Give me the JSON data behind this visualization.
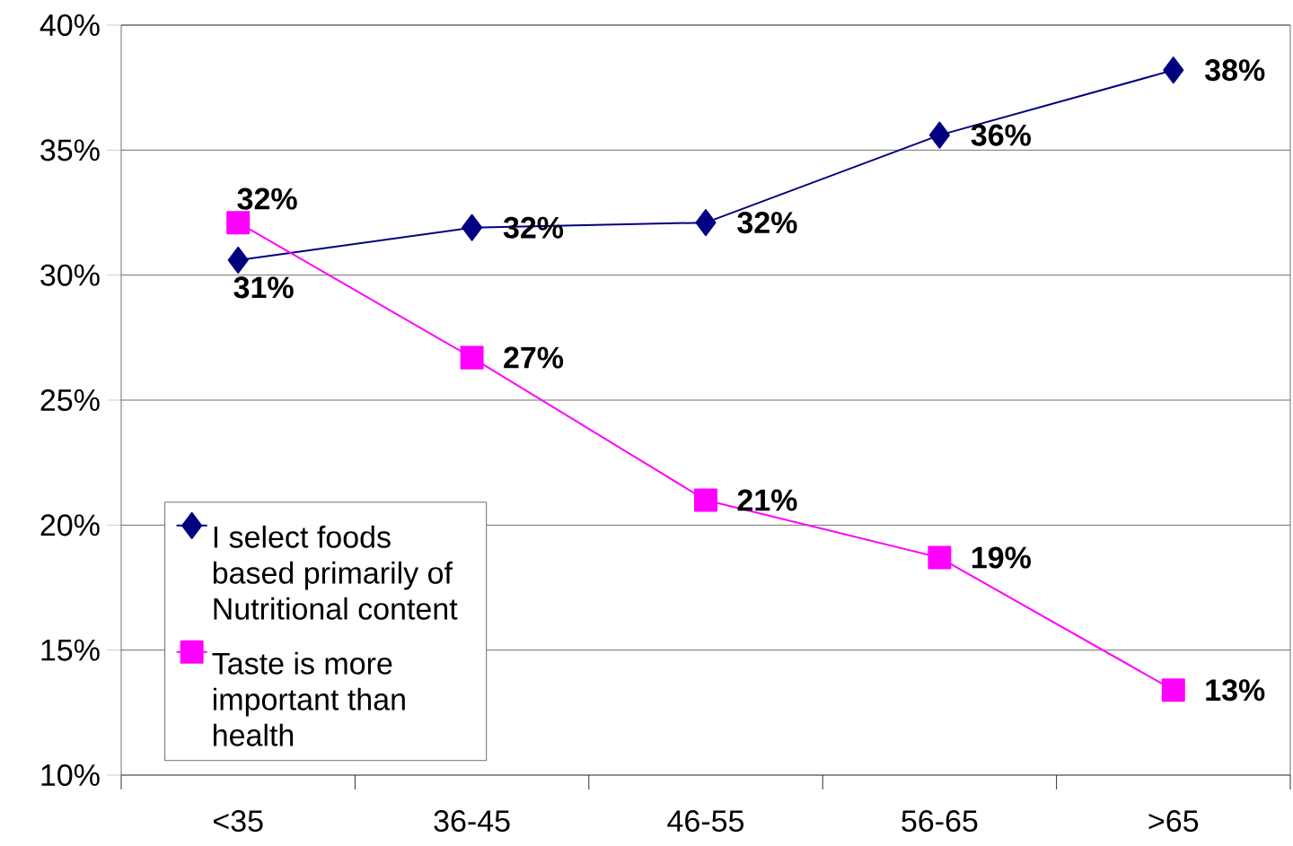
{
  "chart_data": {
    "type": "line",
    "categories": [
      "<35",
      "36-45",
      "46-55",
      "56-65",
      ">65"
    ],
    "series": [
      {
        "name": "I select foods based primarily of Nutritional content",
        "color": "#000080",
        "marker": "diamond",
        "values": [
          30.6,
          31.9,
          32.1,
          35.6,
          38.2
        ],
        "value_labels": [
          "31%",
          "32%",
          "32%",
          "36%",
          "38%"
        ]
      },
      {
        "name": "Taste is more important than health",
        "color": "#ff00ff",
        "marker": "square",
        "values": [
          32.1,
          26.7,
          21.0,
          18.7,
          13.4
        ],
        "value_labels": [
          "32%",
          "27%",
          "21%",
          "19%",
          "13%"
        ]
      }
    ],
    "ylim": [
      10,
      40
    ],
    "yticks": [
      {
        "value": 10,
        "label": "10%"
      },
      {
        "value": 15,
        "label": "15%"
      },
      {
        "value": 20,
        "label": "20%"
      },
      {
        "value": 25,
        "label": "25%"
      },
      {
        "value": 30,
        "label": "30%"
      },
      {
        "value": 35,
        "label": "35%"
      },
      {
        "value": 40,
        "label": "40%"
      }
    ],
    "grid": "y",
    "legend": "bottom left",
    "line_style": "solid"
  }
}
